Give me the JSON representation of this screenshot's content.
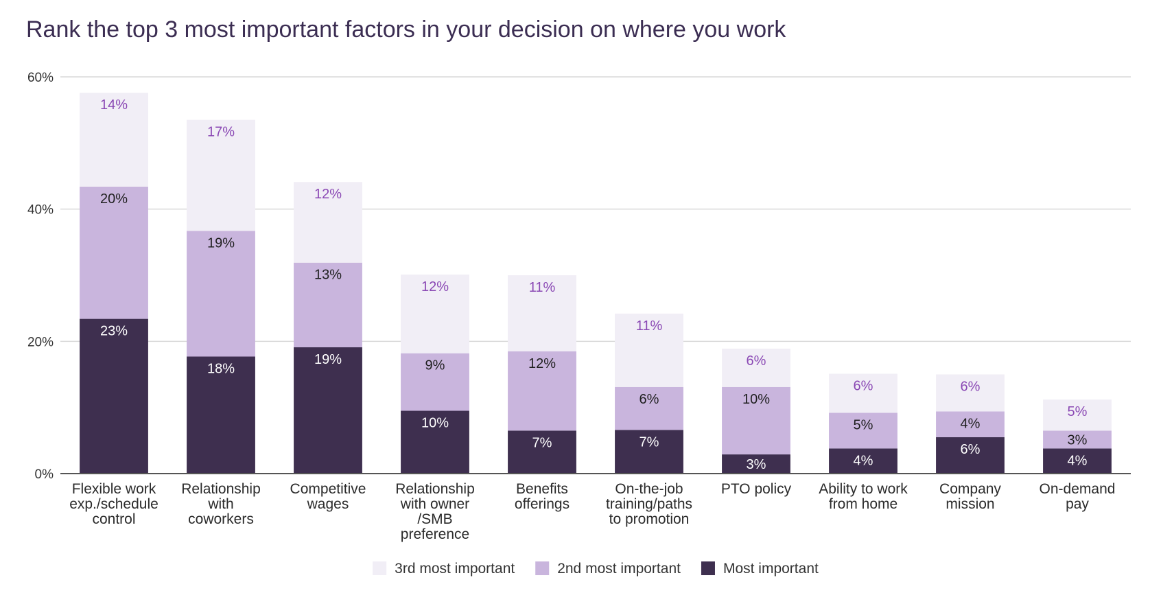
{
  "chart_data": {
    "type": "bar",
    "stacked": true,
    "title": "Rank the top 3 most important factors in your decision on where you work",
    "xlabel": "",
    "ylabel": "",
    "ylim": [
      0,
      60
    ],
    "yticks": [
      "0%",
      "20%",
      "40%",
      "60%"
    ],
    "grid": true,
    "legend_position": "bottom-center",
    "categories": [
      [
        "Flexible work",
        "exp./schedule",
        "control"
      ],
      [
        "Relationship",
        "with",
        "coworkers"
      ],
      [
        "Competitive",
        "wages"
      ],
      [
        "Relationship",
        "with owner",
        "/SMB",
        "preference"
      ],
      [
        "Benefits",
        "offerings"
      ],
      [
        "On-the-job",
        "training/paths",
        "to promotion"
      ],
      [
        "PTO policy"
      ],
      [
        "Ability to work",
        "from home"
      ],
      [
        "Company",
        "mission"
      ],
      [
        "On-demand",
        "pay"
      ]
    ],
    "series": [
      {
        "name": "Most important",
        "color": "#3e2f4f",
        "label_color": "#ffffff",
        "values": [
          23.4,
          17.7,
          19.1,
          9.5,
          6.5,
          6.6,
          2.9,
          3.8,
          5.5,
          3.8
        ],
        "labels": [
          "23%",
          "18%",
          "19%",
          "10%",
          "7%",
          "7%",
          "3%",
          "4%",
          "6%",
          "4%"
        ]
      },
      {
        "name": "2nd most important",
        "color": "#c9b5dd",
        "label_color": "#1f1f1f",
        "values": [
          20.0,
          19.0,
          12.8,
          8.7,
          12.0,
          6.5,
          10.2,
          5.4,
          3.9,
          2.7
        ],
        "labels": [
          "20%",
          "19%",
          "13%",
          "9%",
          "12%",
          "6%",
          "10%",
          "5%",
          "4%",
          "3%"
        ]
      },
      {
        "name": "3rd most important",
        "color": "#f1eef6",
        "label_color": "#8a48b4",
        "values": [
          14.2,
          16.8,
          12.2,
          11.9,
          11.5,
          11.1,
          5.8,
          5.9,
          5.6,
          4.7
        ],
        "labels": [
          "14%",
          "17%",
          "12%",
          "12%",
          "11%",
          "11%",
          "6%",
          "6%",
          "6%",
          "5%"
        ]
      }
    ],
    "legend_order": [
      2,
      1,
      0
    ]
  }
}
